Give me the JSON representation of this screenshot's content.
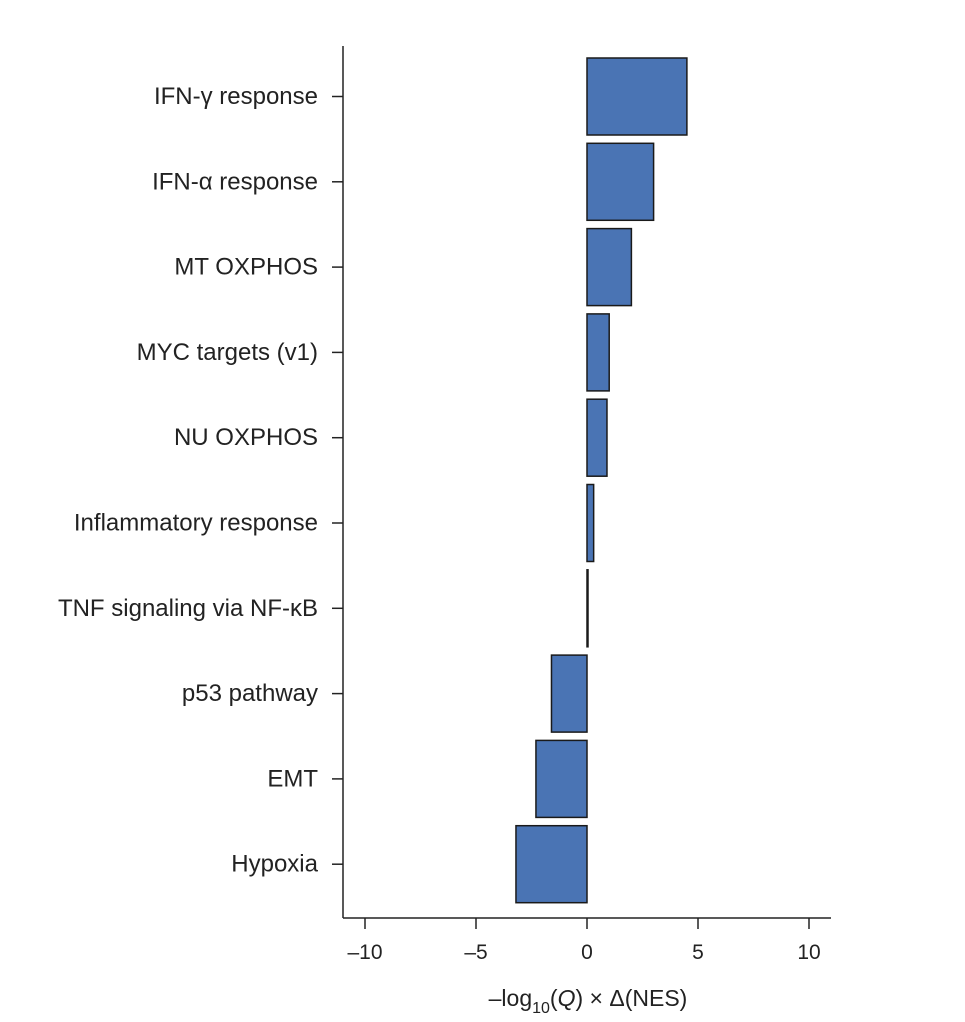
{
  "chart_data": {
    "type": "bar",
    "orientation": "horizontal",
    "categories": [
      "IFN-γ response",
      "IFN-α response",
      "MT OXPHOS",
      "MYC targets (v1)",
      "NU OXPHOS",
      "Inflammatory response",
      "TNF signaling via NF-κB",
      "p53 pathway",
      "EMT",
      "Hypoxia"
    ],
    "values": [
      4.5,
      3.0,
      2.0,
      1.0,
      0.9,
      0.3,
      0.0,
      -1.6,
      -2.3,
      -3.2
    ],
    "xlim": [
      -11,
      11
    ],
    "x_ticks": [
      -10,
      -5,
      0,
      5,
      10
    ],
    "x_tick_labels": [
      "–10",
      "–5",
      "0",
      "5",
      "10"
    ],
    "xlabel": {
      "prefix": "–log",
      "subscript": "10",
      "mid": "(",
      "italic": "Q",
      "suffix": ") × Δ(NES)"
    },
    "bar_color": "#4a74b4",
    "grid": false,
    "legend": "none"
  }
}
